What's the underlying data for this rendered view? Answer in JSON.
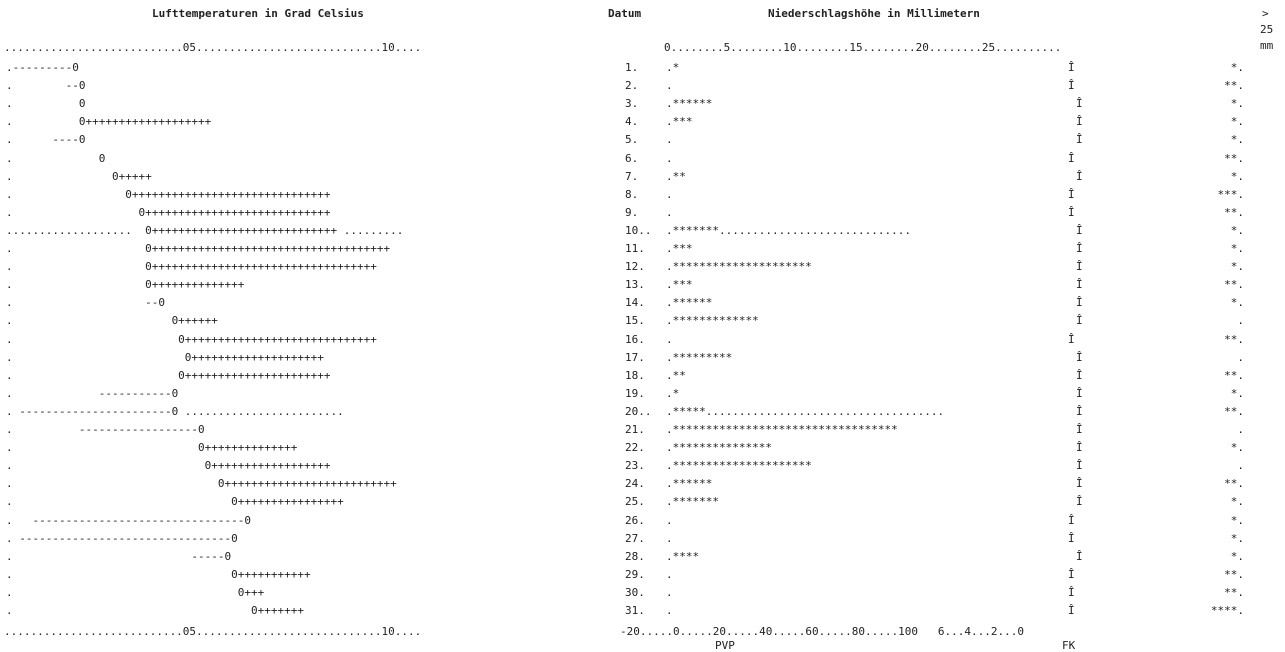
{
  "header": {
    "temp_title": "Lufttemperaturen in Grad Celsius",
    "datum": "Datum",
    "precip_title": "Niederschlagshöhe in Millimetern",
    "gt": ">",
    "gt_val": "25",
    "mm": "mm"
  },
  "scale_top_left": "...........................05............................10....",
  "scale_top_right": "0........5........10........15........20........25..........",
  "scale_bottom_left": "...........................05............................10....",
  "scale_bottom_right": "-20.....0.....20.....40.....60.....80.....100   6...4...2...0",
  "bottom_labels": [
    "PVP",
    "FK"
  ],
  "rows": [
    {
      "temp": ".---------0",
      "day": "1.",
      "rain": ".*",
      "marker": "Î",
      "far": "*."
    },
    {
      "temp": ".        --0",
      "day": "2.",
      "rain": ".",
      "marker": "Î",
      "far": "**."
    },
    {
      "temp": ".          0",
      "day": "3.",
      "rain": ".******",
      "marker": "Î",
      "far": "*."
    },
    {
      "temp": ".          0+++++++++++++++++++",
      "day": "4.",
      "rain": ".***",
      "marker": "Î",
      "far": "*."
    },
    {
      "temp": ".      ----0",
      "day": "5.",
      "rain": ".",
      "marker": "Î",
      "far": "*."
    },
    {
      "temp": ".             0",
      "day": "6.",
      "rain": ".",
      "marker": "Î",
      "far": "**."
    },
    {
      "temp": ".               0+++++",
      "day": "7.",
      "rain": ".**",
      "marker": "Î",
      "far": "*."
    },
    {
      "temp": ".                 0++++++++++++++++++++++++++++++",
      "day": "8.",
      "rain": ".",
      "marker": "Î",
      "far": "***."
    },
    {
      "temp": ".                   0++++++++++++++++++++++++++++",
      "day": "9.",
      "rain": ".",
      "marker": "Î",
      "far": "**."
    },
    {
      "temp": "...................  0++++++++++++++++++++++++++++ .........",
      "day": "10..",
      "rain": ".*******.............................",
      "marker": "Î",
      "far": "*."
    },
    {
      "temp": ".                    0++++++++++++++++++++++++++++++++++++",
      "day": "11.",
      "rain": ".***",
      "marker": "Î",
      "far": "*."
    },
    {
      "temp": ".                    0++++++++++++++++++++++++++++++++++",
      "day": "12.",
      "rain": ".*********************",
      "marker": "Î",
      "far": "*."
    },
    {
      "temp": ".                    0++++++++++++++",
      "day": "13.",
      "rain": ".***",
      "marker": "Î",
      "far": "**."
    },
    {
      "temp": ".                    --0",
      "day": "14.",
      "rain": ".******",
      "marker": "Î",
      "far": "*."
    },
    {
      "temp": ".                        0++++++",
      "day": "15.",
      "rain": ".*************",
      "marker": "Î",
      "far": "."
    },
    {
      "temp": ".                         0+++++++++++++++++++++++++++++",
      "day": "16.",
      "rain": ".",
      "marker": "Î",
      "far": "**."
    },
    {
      "temp": ".                          0++++++++++++++++++++",
      "day": "17.",
      "rain": ".*********",
      "marker": "Î",
      "far": "."
    },
    {
      "temp": ".                         0++++++++++++++++++++++",
      "day": "18.",
      "rain": ".**",
      "marker": "Î",
      "far": "**."
    },
    {
      "temp": ".             -----------0",
      "day": "19.",
      "rain": ".*",
      "marker": "Î",
      "far": "*."
    },
    {
      "temp": ". -----------------------0 ........................",
      "day": "20..",
      "rain": ".*****....................................",
      "marker": "Î",
      "far": "**."
    },
    {
      "temp": ".          ------------------0",
      "day": "21.",
      "rain": ".**********************************",
      "marker": "Î",
      "far": "."
    },
    {
      "temp": ".                            0++++++++++++++",
      "day": "22.",
      "rain": ".***************",
      "marker": "Î",
      "far": "*."
    },
    {
      "temp": ".                             0++++++++++++++++++",
      "day": "23.",
      "rain": ".*********************",
      "marker": "Î",
      "far": "."
    },
    {
      "temp": ".                               0++++++++++++++++++++++++++",
      "day": "24.",
      "rain": ".******",
      "marker": "Î",
      "far": "**."
    },
    {
      "temp": ".                                 0++++++++++++++++",
      "day": "25.",
      "rain": ".*******",
      "marker": "Î",
      "far": "*."
    },
    {
      "temp": ".   --------------------------------0",
      "day": "26.",
      "rain": ".",
      "marker": "Î",
      "far": "*."
    },
    {
      "temp": ". --------------------------------0",
      "day": "27.",
      "rain": ".",
      "marker": "Î",
      "far": "*."
    },
    {
      "temp": ".                           -----0",
      "day": "28.",
      "rain": ".****",
      "marker": "Î",
      "far": "*."
    },
    {
      "temp": ".                                 0+++++++++++",
      "day": "29.",
      "rain": ".",
      "marker": "Î",
      "far": "**."
    },
    {
      "temp": ".                                  0+++",
      "day": "30.",
      "rain": ".",
      "marker": "Î",
      "far": "**."
    },
    {
      "temp": ".                                    0+++++++",
      "day": "31.",
      "rain": ".",
      "marker": "Î",
      "far": "****."
    }
  ]
}
